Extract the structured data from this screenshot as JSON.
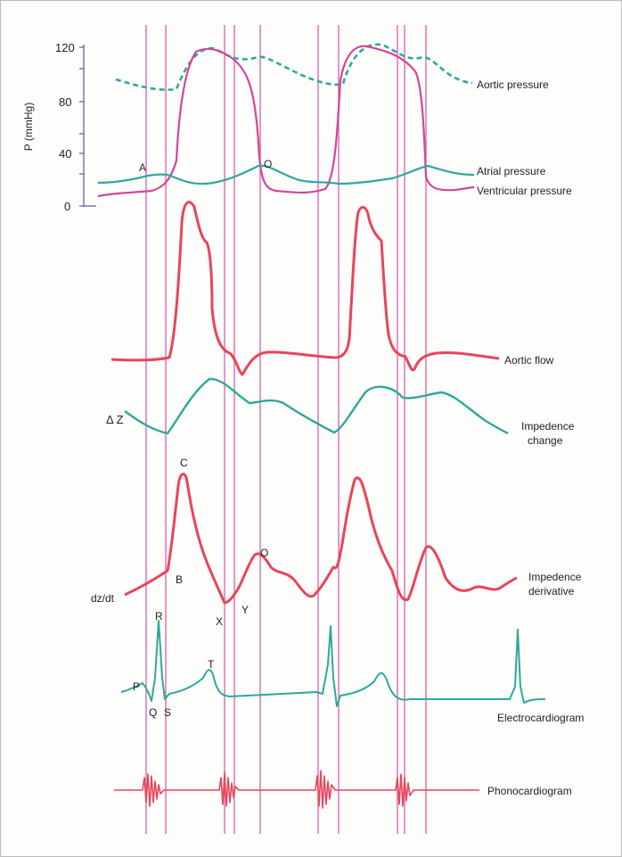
{
  "y_axis": {
    "title": "P (mmHg)",
    "ticks": [
      "120",
      "80",
      "40",
      "0"
    ]
  },
  "labels": {
    "aortic_pressure": "Aortic pressure",
    "atrial_pressure": "Atrial pressure",
    "ventricular_pressure": "Ventricular pressure",
    "aortic_flow": "Aortic flow",
    "impedance_change_line1": "Impedence",
    "impedance_change_line2": "change",
    "impedance_derivative_line1": "Impedence",
    "impedance_derivative_line2": "derivative",
    "electrocardiogram": "Electrocardiogram",
    "phonocardiogram": "Phonocardiogram",
    "delta_z": "Δ Z",
    "dz_dt": "dz/dt"
  },
  "points": {
    "A": "A",
    "O_pressure": "O",
    "C": "C",
    "B": "B",
    "X": "X",
    "Y": "Y",
    "O_derivative": "O",
    "P": "P",
    "Q": "Q",
    "R": "R",
    "S": "S",
    "T": "T"
  },
  "colors": {
    "magenta": "#d4449a",
    "teal": "#2fa89a",
    "red": "#e8455a",
    "axis": "#5a5a9a",
    "text": "#222222",
    "background": "#fdfdfc"
  }
}
